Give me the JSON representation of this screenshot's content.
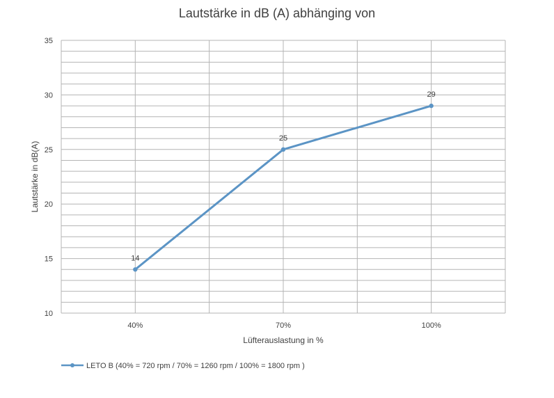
{
  "chart_data": {
    "type": "line",
    "title": "Lautstärke in dB (A) abhänging von",
    "xlabel": "Lüfterauslastung in %",
    "ylabel": "Lautstärke in dB(A)",
    "categories": [
      "40%",
      "70%",
      "100%"
    ],
    "ylim": [
      10,
      35
    ],
    "y_major_ticks": [
      10,
      15,
      20,
      25,
      30,
      35
    ],
    "y_minor_step": 1,
    "grid": true,
    "legend_position": "bottom-left",
    "series": [
      {
        "name": "LETO B (40% = 720 rpm / 70% =  1260 rpm / 100% = 1800 rpm )",
        "values": [
          14,
          25,
          29
        ],
        "data_labels": [
          "14",
          "25",
          "29"
        ],
        "color": "#5b94c5"
      }
    ]
  }
}
